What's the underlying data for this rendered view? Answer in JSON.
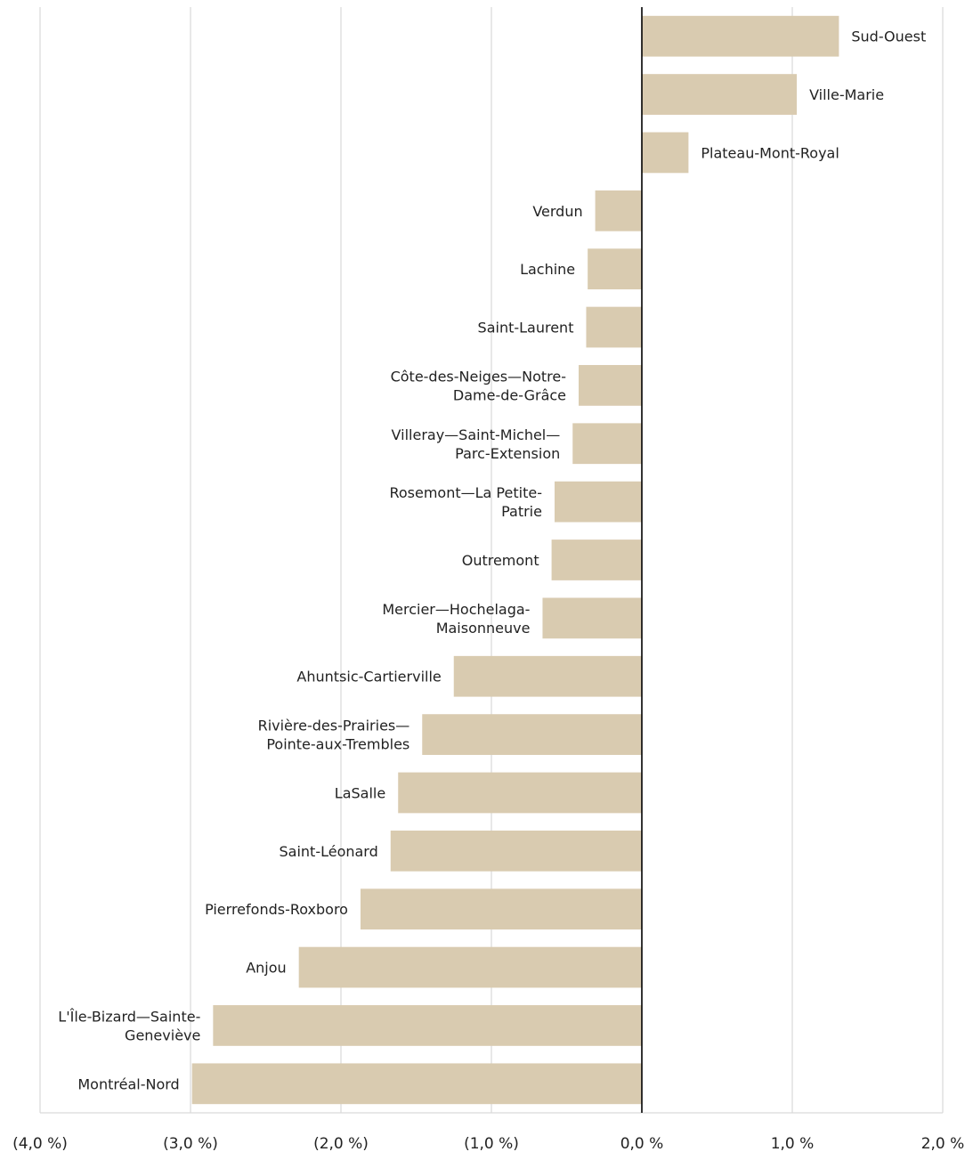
{
  "chart_data": {
    "type": "bar",
    "orientation": "horizontal",
    "title": "",
    "xlabel": "",
    "ylabel": "",
    "xlim": [
      -4,
      2
    ],
    "x_ticks": [
      -4,
      -3,
      -2,
      -1,
      0,
      1,
      2
    ],
    "x_tick_labels": [
      "(4,0 %)",
      "(3,0 %)",
      "(2,0 %)",
      "(1,0 %)",
      "0,0 %",
      "1,0 %",
      "2,0 %"
    ],
    "grid": "vertical",
    "bar_color": "#D9CBB0",
    "grid_color": "#D9D9D9",
    "zero_line_color": "#000000",
    "categories": [
      [
        "Sud-Ouest"
      ],
      [
        "Ville-Marie"
      ],
      [
        "Plateau-Mont-Royal"
      ],
      [
        "Verdun"
      ],
      [
        "Lachine"
      ],
      [
        "Saint-Laurent"
      ],
      [
        "Côte-des-Neiges—Notre-",
        "Dame-de-Grâce"
      ],
      [
        "Villeray—Saint-Michel—",
        "Parc-Extension"
      ],
      [
        "Rosemont—La Petite-",
        "Patrie"
      ],
      [
        "Outremont"
      ],
      [
        "Mercier—Hochelaga-",
        "Maisonneuve"
      ],
      [
        "Ahuntsic-Cartierville"
      ],
      [
        "Rivière-des-Prairies—",
        "Pointe-aux-Trembles"
      ],
      [
        "LaSalle"
      ],
      [
        "Saint-Léonard"
      ],
      [
        "Pierrefonds-Roxboro"
      ],
      [
        "Anjou"
      ],
      [
        "L'Île-Bizard—Sainte-",
        "Geneviève"
      ],
      [
        "Montréal-Nord"
      ]
    ],
    "values": [
      1.31,
      1.03,
      0.31,
      -0.31,
      -0.36,
      -0.37,
      -0.42,
      -0.46,
      -0.58,
      -0.6,
      -0.66,
      -1.25,
      -1.46,
      -1.62,
      -1.67,
      -1.87,
      -2.28,
      -2.85,
      -2.99
    ]
  }
}
